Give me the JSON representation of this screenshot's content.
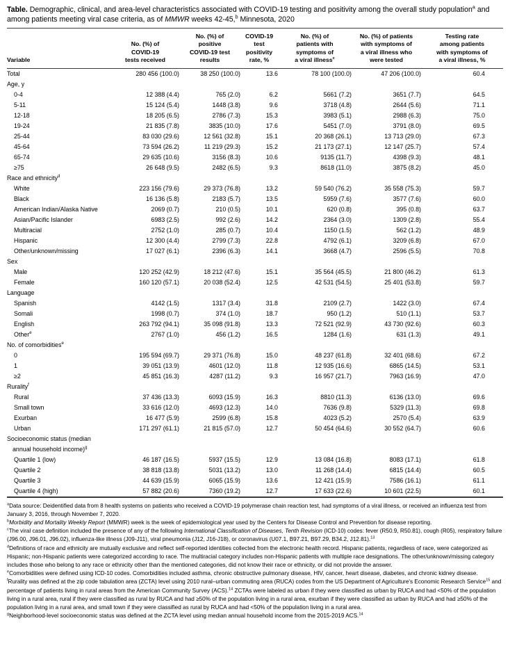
{
  "colors": {
    "text": "#000000",
    "rule": "#3b3b3b",
    "background": "#ffffff"
  },
  "title": {
    "parts": [
      {
        "t": "Table.",
        "bold": true
      },
      {
        "t": " Demographic, clinical, and area-level characteristics associated with COVID-19 testing and positivity among the overall study population"
      },
      {
        "t": "a",
        "sup": true
      },
      {
        "t": " and among patients meeting viral case criteria, as of "
      },
      {
        "t": "MMWR",
        "italic": true
      },
      {
        "t": " weeks 42-45,"
      },
      {
        "t": "b",
        "sup": true
      },
      {
        "t": " Minnesota, 2020"
      }
    ]
  },
  "table": {
    "columns": [
      {
        "id": "variable",
        "lines": [
          "Variable"
        ]
      },
      {
        "id": "tests-received",
        "lines": [
          "No. (%) of",
          "COVID-19",
          "tests received"
        ]
      },
      {
        "id": "positive-results",
        "lines": [
          "No. (%) of",
          "positive",
          "COVID-19 test",
          "results"
        ]
      },
      {
        "id": "positivity-rate",
        "lines": [
          "COVID-19",
          "test",
          "positivity",
          "rate, %"
        ]
      },
      {
        "id": "symptomatic-patients",
        "lines": [
          "No. (%) of",
          "patients with",
          "symptoms of",
          "a viral illness"
        ],
        "sup": "c"
      },
      {
        "id": "symptomatic-tested",
        "lines": [
          "No. (%) of patients",
          "with symptoms of",
          "a viral illness who",
          "were tested"
        ]
      },
      {
        "id": "testing-rate",
        "lines": [
          "Testing rate",
          "among patients",
          "with symptoms of",
          "a viral illness, %"
        ]
      }
    ],
    "rows": [
      {
        "type": "data",
        "indent": 0,
        "label": "Total",
        "values": [
          "280 456 (100.0)",
          "38 250 (100.0)",
          "13.6",
          "78 100 (100.0)",
          "47 206 (100.0)",
          "60.4"
        ]
      },
      {
        "type": "section",
        "indent": 0,
        "label": "Age, y"
      },
      {
        "type": "data",
        "indent": 1,
        "label": "0-4",
        "values": [
          "12 388 (4.4)",
          "765 (2.0)",
          "6.2",
          "5661 (7.2)",
          "3651 (7.7)",
          "64.5"
        ]
      },
      {
        "type": "data",
        "indent": 1,
        "label": "5-11",
        "values": [
          "15 124 (5.4)",
          "1448 (3.8)",
          "9.6",
          "3718 (4.8)",
          "2644 (5.6)",
          "71.1"
        ]
      },
      {
        "type": "data",
        "indent": 1,
        "label": "12-18",
        "values": [
          "18 205 (6.5)",
          "2786 (7.3)",
          "15.3",
          "3983 (5.1)",
          "2988 (6.3)",
          "75.0"
        ]
      },
      {
        "type": "data",
        "indent": 1,
        "label": "19-24",
        "values": [
          "21 835 (7.8)",
          "3835 (10.0)",
          "17.6",
          "5451 (7.0)",
          "3791 (8.0)",
          "69.5"
        ]
      },
      {
        "type": "data",
        "indent": 1,
        "label": "25-44",
        "values": [
          "83 030 (29.6)",
          "12 561 (32.8)",
          "15.1",
          "20 368 (26.1)",
          "13 713 (29.0)",
          "67.3"
        ]
      },
      {
        "type": "data",
        "indent": 1,
        "label": "45-64",
        "values": [
          "73 594 (26.2)",
          "11 219 (29.3)",
          "15.2",
          "21 173 (27.1)",
          "12 147 (25.7)",
          "57.4"
        ]
      },
      {
        "type": "data",
        "indent": 1,
        "label": "65-74",
        "values": [
          "29 635 (10.6)",
          "3156 (8.3)",
          "10.6",
          "9135 (11.7)",
          "4398 (9.3)",
          "48.1"
        ]
      },
      {
        "type": "data",
        "indent": 1,
        "label": "≥75",
        "values": [
          "26 648 (9.5)",
          "2482 (6.5)",
          "9.3",
          "8618 (11.0)",
          "3875 (8.2)",
          "45.0"
        ]
      },
      {
        "type": "section",
        "indent": 0,
        "label": "Race and ethnicity",
        "sup": "d"
      },
      {
        "type": "data",
        "indent": 1,
        "label": "White",
        "values": [
          "223 156 (79.6)",
          "29 373 (76.8)",
          "13.2",
          "59 540 (76.2)",
          "35 558 (75.3)",
          "59.7"
        ]
      },
      {
        "type": "data",
        "indent": 1,
        "label": "Black",
        "values": [
          "16 136 (5.8)",
          "2183 (5.7)",
          "13.5",
          "5959 (7.6)",
          "3577 (7.6)",
          "60.0"
        ]
      },
      {
        "type": "data",
        "indent": 1,
        "label": "American Indian/Alaska Native",
        "values": [
          "2069 (0.7)",
          "210 (0.5)",
          "10.1",
          "620 (0.8)",
          "395 (0.8)",
          "63.7"
        ]
      },
      {
        "type": "data",
        "indent": 1,
        "label": "Asian/Pacific Islander",
        "values": [
          "6983 (2.5)",
          "992 (2.6)",
          "14.2",
          "2364 (3.0)",
          "1309 (2.8)",
          "55.4"
        ]
      },
      {
        "type": "data",
        "indent": 1,
        "label": "Multiracial",
        "values": [
          "2752 (1.0)",
          "285 (0.7)",
          "10.4",
          "1150 (1.5)",
          "562 (1.2)",
          "48.9"
        ]
      },
      {
        "type": "data",
        "indent": 1,
        "label": "Hispanic",
        "values": [
          "12 300 (4.4)",
          "2799 (7.3)",
          "22.8",
          "4792 (6.1)",
          "3209 (6.8)",
          "67.0"
        ]
      },
      {
        "type": "data",
        "indent": 1,
        "label": "Other/unknown/missing",
        "values": [
          "17 027 (6.1)",
          "2396 (6.3)",
          "14.1",
          "3668 (4.7)",
          "2596 (5.5)",
          "70.8"
        ]
      },
      {
        "type": "section",
        "indent": 0,
        "label": "Sex"
      },
      {
        "type": "data",
        "indent": 1,
        "label": "Male",
        "values": [
          "120 252 (42.9)",
          "18 212 (47.6)",
          "15.1",
          "35 564 (45.5)",
          "21 800 (46.2)",
          "61.3"
        ]
      },
      {
        "type": "data",
        "indent": 1,
        "label": "Female",
        "values": [
          "160 120 (57.1)",
          "20 038 (52.4)",
          "12.5",
          "42 531 (54.5)",
          "25 401 (53.8)",
          "59.7"
        ]
      },
      {
        "type": "section",
        "indent": 0,
        "label": "Language"
      },
      {
        "type": "data",
        "indent": 1,
        "label": "Spanish",
        "values": [
          "4142 (1.5)",
          "1317 (3.4)",
          "31.8",
          "2109 (2.7)",
          "1422 (3.0)",
          "67.4"
        ]
      },
      {
        "type": "data",
        "indent": 1,
        "label": "Somali",
        "values": [
          "1998 (0.7)",
          "374 (1.0)",
          "18.7",
          "950 (1.2)",
          "510 (1.1)",
          "53.7"
        ]
      },
      {
        "type": "data",
        "indent": 1,
        "label": "English",
        "values": [
          "263 792 (94.1)",
          "35 098 (91.8)",
          "13.3",
          "72 521 (92.9)",
          "43 730 (92.6)",
          "60.3"
        ]
      },
      {
        "type": "data",
        "indent": 1,
        "label": "Other",
        "sup": "e",
        "values": [
          "2767 (1.0)",
          "456 (1.2)",
          "16.5",
          "1284 (1.6)",
          "631 (1.3)",
          "49.1"
        ]
      },
      {
        "type": "section",
        "indent": 0,
        "label": "No. of comorbidities",
        "sup": "e"
      },
      {
        "type": "data",
        "indent": 1,
        "label": "0",
        "values": [
          "195 594 (69.7)",
          "29 371 (76.8)",
          "15.0",
          "48 237 (61.8)",
          "32 401 (68.6)",
          "67.2"
        ]
      },
      {
        "type": "data",
        "indent": 1,
        "label": "1",
        "values": [
          "39 051 (13.9)",
          "4601 (12.0)",
          "11.8",
          "12 935 (16.6)",
          "6865 (14.5)",
          "53.1"
        ]
      },
      {
        "type": "data",
        "indent": 1,
        "label": "≥2",
        "values": [
          "45 851 (16.3)",
          "4287 (11.2)",
          "9.3",
          "16 957 (21.7)",
          "7963 (16.9)",
          "47.0"
        ]
      },
      {
        "type": "section",
        "indent": 0,
        "label": "Rurality",
        "sup": "f"
      },
      {
        "type": "data",
        "indent": 1,
        "label": "Rural",
        "values": [
          "37 436 (13.3)",
          "6093 (15.9)",
          "16.3",
          "8810 (11.3)",
          "6136 (13.0)",
          "69.6"
        ]
      },
      {
        "type": "data",
        "indent": 1,
        "label": "Small town",
        "values": [
          "33 616 (12.0)",
          "4693 (12.3)",
          "14.0",
          "7636 (9.8)",
          "5329 (11.3)",
          "69.8"
        ]
      },
      {
        "type": "data",
        "indent": 1,
        "label": "Exurban",
        "values": [
          "16 477 (5.9)",
          "2599 (6.8)",
          "15.8",
          "4023 (5.2)",
          "2570 (5.4)",
          "63.9"
        ]
      },
      {
        "type": "data",
        "indent": 1,
        "label": "Urban",
        "values": [
          "171 297 (61.1)",
          "21 815 (57.0)",
          "12.7",
          "50 454 (64.6)",
          "30 552 (64.7)",
          "60.6"
        ]
      },
      {
        "type": "section",
        "indent": 0,
        "label": "Socioeconomic status (median",
        "line2": "annual household income)",
        "line2_sup": "g"
      },
      {
        "type": "data",
        "indent": 1,
        "label": "Quartile 1 (low)",
        "values": [
          "46 187 (16.5)",
          "5937 (15.5)",
          "12.9",
          "13 084 (16.8)",
          "8083 (17.1)",
          "61.8"
        ]
      },
      {
        "type": "data",
        "indent": 1,
        "label": "Quartile 2",
        "values": [
          "38 818 (13.8)",
          "5031 (13.2)",
          "13.0",
          "11 268 (14.4)",
          "6815 (14.4)",
          "60.5"
        ]
      },
      {
        "type": "data",
        "indent": 1,
        "label": "Quartile 3",
        "values": [
          "44 639 (15.9)",
          "6065 (15.9)",
          "13.6",
          "12 421 (15.9)",
          "7586 (16.1)",
          "61.1"
        ]
      },
      {
        "type": "data",
        "indent": 1,
        "label": "Quartile 4 (high)",
        "values": [
          "57 882 (20.6)",
          "7360 (19.2)",
          "12.7",
          "17 633 (22.6)",
          "10 601 (22.5)",
          "60.1"
        ]
      }
    ]
  },
  "footnotes": [
    {
      "id": "a",
      "parts": [
        {
          "t": "a",
          "sup": true
        },
        {
          "t": "Data source: Deidentified data from 8 health systems on patients who received a COVID-19 polymerase chain reaction test, had symptoms of a viral illness, or received an influenza test from January 3, 2016, through November 7, 2020."
        }
      ]
    },
    {
      "id": "b",
      "parts": [
        {
          "t": "b",
          "sup": true
        },
        {
          "t": "Morbidity and Mortality Weekly Report",
          "italic": true
        },
        {
          "t": " (MMWR) week is the week of epidemiological year used by the Centers for Disease Control and Prevention for disease reporting."
        }
      ]
    },
    {
      "id": "c",
      "parts": [
        {
          "t": "c",
          "sup": true
        },
        {
          "t": "The viral case definition included the presence of any of the following "
        },
        {
          "t": "International Classification of Diseases, Tenth Revision",
          "italic": true
        },
        {
          "t": " (ICD-10) codes: fever (R50.9, R50.81), cough (R05), respiratory failure (J96.00, J96.01, J96.02), influenza-like illness (J09-J11), viral pneumonia (J12, J16-J18), or coronavirus (U07.1, B97.21, B97.29, B34.2, J12.81)."
        },
        {
          "t": "13",
          "sup": true
        }
      ]
    },
    {
      "id": "d",
      "parts": [
        {
          "t": "d",
          "sup": true
        },
        {
          "t": "Definitions of race and ethnicity are mutually exclusive and reflect self-reported identities collected from the electronic health record. Hispanic patients, regardless of race, were categorized as Hispanic; non-Hispanic patients were categorized according to race. The multiracial category includes non-Hispanic patients with multiple race designations. The other/unknown/missing category includes those who belong to any race or ethnicity other than the mentioned categories, did not know their race or ethnicity, or did not provide the answer."
        }
      ]
    },
    {
      "id": "e",
      "parts": [
        {
          "t": "e",
          "sup": true
        },
        {
          "t": "Comorbidities were defined using ICD-10 codes. Comorbidities included asthma, chronic obstructive pulmonary disease, HIV, cancer, heart disease, diabetes, and chronic kidney disease."
        }
      ]
    },
    {
      "id": "f",
      "parts": [
        {
          "t": "f",
          "sup": true
        },
        {
          "t": "Rurality was defined at the zip code tabulation area (ZCTA) level using 2010 rural–urban commuting area (RUCA) codes from the US Department of Agriculture's Economic Research Service"
        },
        {
          "t": "15",
          "sup": true
        },
        {
          "t": " and percentage of patients living in rural areas from the American Community Survey (ACS)."
        },
        {
          "t": "14",
          "sup": true
        },
        {
          "t": " ZCTAs were labeled as urban if they were classified as urban by RUCA and had <50% of the population living in a rural area, rural if they were classified as rural by RUCA and had ≥50% of the population living in a rural area, exurban if they were classified as urban by RUCA and had ≥50% of the population living in a rural area, and small town if they were classified as rural by RUCA and had <50% of the population living in a rural area."
        }
      ]
    },
    {
      "id": "g",
      "parts": [
        {
          "t": "g",
          "sup": true
        },
        {
          "t": "Neighborhood-level socioeconomic status was defined at the ZCTA level using median annual household income from the 2015-2019 ACS."
        },
        {
          "t": "14",
          "sup": true
        }
      ]
    }
  ]
}
